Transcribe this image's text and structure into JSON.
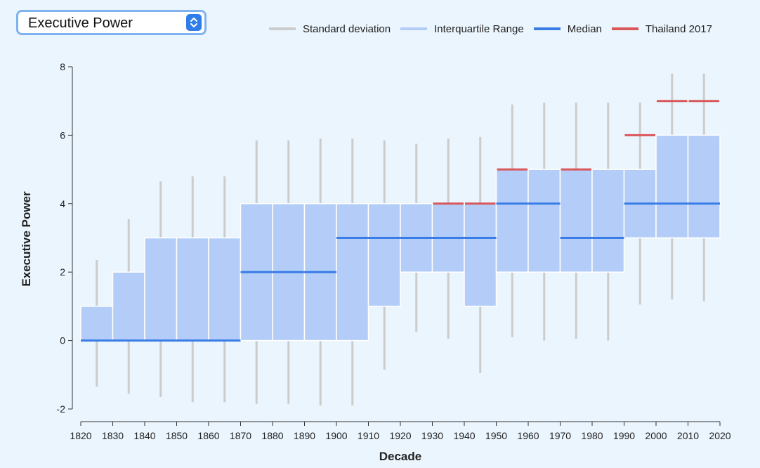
{
  "dropdown": {
    "selected": "Executive Power"
  },
  "colors": {
    "background": "#ebf5fd",
    "std": "#cccccc",
    "iqr": "#b3cdf8",
    "median": "#3a7de6",
    "highlight": "#d9575b"
  },
  "chart_data": {
    "type": "box",
    "xlabel": "Decade",
    "ylabel": "Executive Power",
    "xlim": [
      1820,
      2020
    ],
    "ylim": [
      -2,
      8
    ],
    "x_ticks": [
      1820,
      1830,
      1840,
      1850,
      1860,
      1870,
      1880,
      1890,
      1900,
      1910,
      1920,
      1930,
      1940,
      1950,
      1960,
      1970,
      1980,
      1990,
      2000,
      2010,
      2020
    ],
    "y_ticks": [
      -2,
      0,
      2,
      4,
      6,
      8
    ],
    "legend": {
      "position": "top-right",
      "entries": [
        "Standard deviation",
        "Interquartile Range",
        "Median",
        "Thailand 2017"
      ]
    },
    "boxes": [
      {
        "decade": 1820,
        "std_low": -1.35,
        "std_high": 2.35,
        "q1": 0,
        "q3": 1,
        "median": 0
      },
      {
        "decade": 1830,
        "std_low": -1.55,
        "std_high": 3.55,
        "q1": 0,
        "q3": 2,
        "median": 0
      },
      {
        "decade": 1840,
        "std_low": -1.65,
        "std_high": 4.65,
        "q1": 0,
        "q3": 3,
        "median": 0
      },
      {
        "decade": 1850,
        "std_low": -1.8,
        "std_high": 4.8,
        "q1": 0,
        "q3": 3,
        "median": 0
      },
      {
        "decade": 1860,
        "std_low": -1.8,
        "std_high": 4.8,
        "q1": 0,
        "q3": 3,
        "median": 0
      },
      {
        "decade": 1870,
        "std_low": -1.85,
        "std_high": 5.85,
        "q1": 0,
        "q3": 4,
        "median": 2
      },
      {
        "decade": 1880,
        "std_low": -1.85,
        "std_high": 5.85,
        "q1": 0,
        "q3": 4,
        "median": 2
      },
      {
        "decade": 1890,
        "std_low": -1.9,
        "std_high": 5.9,
        "q1": 0,
        "q3": 4,
        "median": 2
      },
      {
        "decade": 1900,
        "std_low": -1.9,
        "std_high": 5.9,
        "q1": 0,
        "q3": 4,
        "median": 3
      },
      {
        "decade": 1910,
        "std_low": -0.85,
        "std_high": 5.85,
        "q1": 1,
        "q3": 4,
        "median": 3
      },
      {
        "decade": 1920,
        "std_low": 0.25,
        "std_high": 5.75,
        "q1": 2,
        "q3": 4,
        "median": 3
      },
      {
        "decade": 1930,
        "std_low": 0.05,
        "std_high": 5.9,
        "q1": 2,
        "q3": 4,
        "median": 3,
        "highlight": 4
      },
      {
        "decade": 1940,
        "std_low": -0.95,
        "std_high": 5.95,
        "q1": 1,
        "q3": 4,
        "median": 3,
        "highlight": 4
      },
      {
        "decade": 1950,
        "std_low": 0.1,
        "std_high": 6.9,
        "q1": 2,
        "q3": 5,
        "median": 4,
        "highlight": 5
      },
      {
        "decade": 1960,
        "std_low": 0.0,
        "std_high": 6.95,
        "q1": 2,
        "q3": 5,
        "median": 4
      },
      {
        "decade": 1970,
        "std_low": 0.05,
        "std_high": 6.95,
        "q1": 2,
        "q3": 5,
        "median": 3,
        "highlight": 5
      },
      {
        "decade": 1980,
        "std_low": 0.0,
        "std_high": 6.95,
        "q1": 2,
        "q3": 5,
        "median": 3
      },
      {
        "decade": 1990,
        "std_low": 1.05,
        "std_high": 6.95,
        "q1": 3,
        "q3": 5,
        "median": 4,
        "highlight": 6
      },
      {
        "decade": 2000,
        "std_low": 1.2,
        "std_high": 7.8,
        "q1": 3,
        "q3": 6,
        "median": 4,
        "highlight": 7
      },
      {
        "decade": 2010,
        "std_low": 1.15,
        "std_high": 7.8,
        "q1": 3,
        "q3": 6,
        "median": 4,
        "highlight": 7
      }
    ]
  }
}
